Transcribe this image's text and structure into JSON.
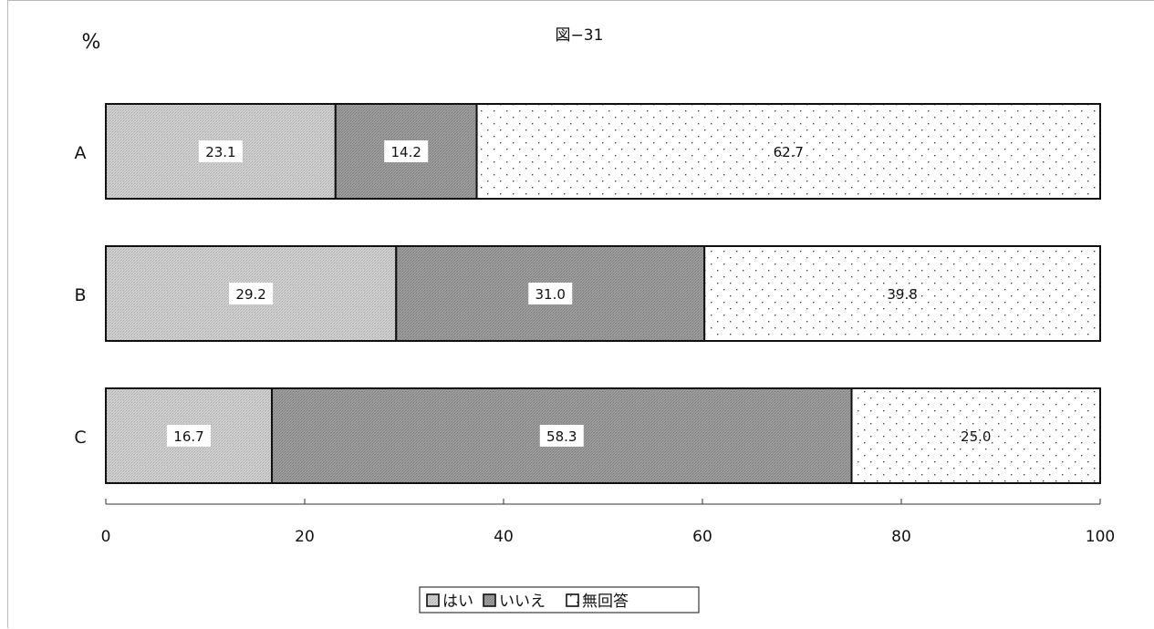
{
  "chart_data": {
    "type": "bar",
    "orientation": "horizontal",
    "stacked": true,
    "title": "図−31",
    "ylabel": "%",
    "categories": [
      "A",
      "B",
      "C"
    ],
    "series": [
      {
        "name": "はい",
        "values": [
          23.1,
          29.2,
          16.7
        ]
      },
      {
        "name": "いいえ",
        "values": [
          14.2,
          31.0,
          58.3
        ]
      },
      {
        "name": "無回答",
        "values": [
          62.7,
          39.8,
          25.0
        ]
      }
    ],
    "xlim": [
      0,
      100
    ],
    "xticks": [
      0,
      20,
      40,
      60,
      80,
      100
    ],
    "grid": false,
    "legend_position": "bottom-center"
  }
}
